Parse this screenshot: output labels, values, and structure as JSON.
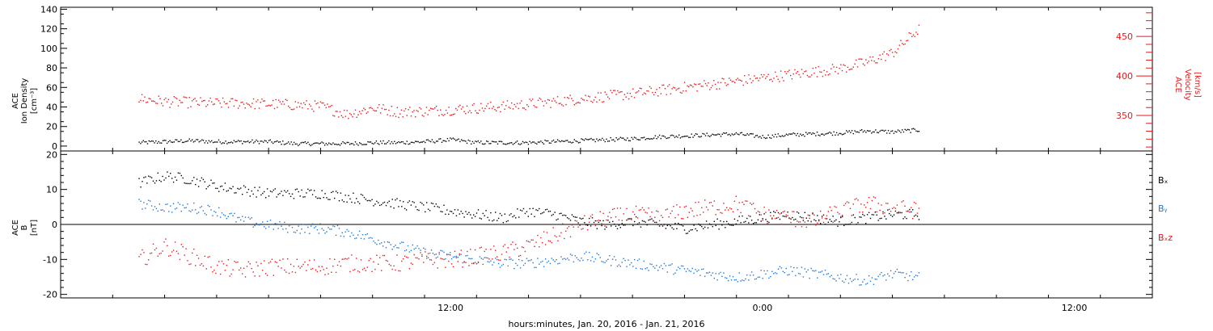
{
  "xlabel": "hours:minutes, Jan. 20, 2016 - Jan. 21, 2016",
  "x_ticks": [
    {
      "hours": 12,
      "label": "12:00"
    },
    {
      "hours": 24,
      "label": "0:00"
    },
    {
      "hours": 36,
      "label": "12:00"
    }
  ],
  "chart_data": [
    {
      "type": "scatter",
      "panel": "top",
      "x_range_hours": [
        0,
        30
      ],
      "xlim_hours": [
        -3,
        39
      ],
      "left_axis": {
        "label_lines": [
          "ACE",
          "Ion Density",
          "[cm⁻³]"
        ],
        "ylim": [
          -5,
          142
        ],
        "ticks": [
          0,
          20,
          40,
          60,
          80,
          100,
          120,
          140
        ]
      },
      "right_axis": {
        "label_lines": [
          "ACE",
          "Velocity",
          "[km/s]"
        ],
        "ylim": [
          305,
          487
        ],
        "ticks": [
          350,
          400,
          450
        ],
        "color": "#e8191b"
      },
      "series": [
        {
          "name": "",
          "axis": "left",
          "color": "#000000",
          "hours": [
            0,
            1,
            2,
            3,
            4,
            5,
            6,
            7,
            8,
            9,
            10,
            11,
            12,
            13,
            14,
            15,
            16,
            17,
            18,
            19,
            20,
            21,
            22,
            23,
            24,
            25,
            26,
            27,
            28,
            29,
            30
          ],
          "values": [
            4,
            5,
            6,
            5,
            5,
            5,
            3,
            3,
            3,
            4,
            4,
            5,
            7,
            4,
            4,
            4,
            5,
            6,
            7,
            8,
            10,
            11,
            12,
            13,
            10,
            12,
            13,
            14,
            16,
            15,
            17
          ]
        },
        {
          "name": "",
          "axis": "right",
          "color": "#e8191b",
          "hours": [
            0,
            1,
            2,
            3,
            4,
            5,
            6,
            7,
            8,
            9,
            10,
            11,
            12,
            13,
            14,
            15,
            16,
            17,
            18,
            19,
            20,
            21,
            22,
            23,
            24,
            25,
            26,
            27,
            28,
            29,
            30
          ],
          "values": [
            372,
            368,
            367,
            366,
            366,
            365,
            364,
            362,
            352,
            360,
            355,
            356,
            358,
            360,
            362,
            365,
            368,
            372,
            375,
            378,
            382,
            386,
            390,
            394,
            398,
            402,
            406,
            410,
            418,
            430,
            460
          ]
        }
      ]
    },
    {
      "type": "scatter",
      "panel": "bottom",
      "x_range_hours": [
        0,
        30
      ],
      "xlim_hours": [
        -3,
        39
      ],
      "axis": {
        "label_lines": [
          "ACE",
          "B",
          "[nT]"
        ],
        "ylim": [
          -21,
          21
        ],
        "ticks": [
          -20,
          -10,
          0,
          10,
          20
        ],
        "zero_line": true
      },
      "series": [
        {
          "name": "Bₓ",
          "color": "#000000",
          "hours": [
            0,
            1,
            2,
            3,
            4,
            5,
            6,
            7,
            8,
            9,
            10,
            11,
            12,
            13,
            14,
            15,
            16,
            17,
            18,
            19,
            20,
            21,
            22,
            23,
            24,
            25,
            26,
            27,
            28,
            29,
            30
          ],
          "values": [
            12,
            14,
            13,
            11,
            10,
            9,
            9,
            9,
            8,
            7,
            6,
            5,
            4,
            3,
            2,
            4,
            3,
            1,
            0,
            1,
            0,
            -1,
            0,
            1,
            2,
            3,
            2,
            1,
            2,
            3,
            3
          ]
        },
        {
          "name": "Bᵧ",
          "color": "#1f77d4",
          "hours": [
            0,
            1,
            2,
            3,
            4,
            5,
            6,
            7,
            8,
            9,
            10,
            11,
            12,
            13,
            14,
            15,
            16,
            17,
            18,
            19,
            20,
            21,
            22,
            23,
            24,
            25,
            26,
            27,
            28,
            29,
            30
          ],
          "values": [
            6,
            5,
            5,
            4,
            1,
            0,
            -1,
            -1,
            -2,
            -4,
            -6,
            -8,
            -9,
            -10,
            -11,
            -11,
            -10,
            -9,
            -10,
            -11,
            -12,
            -13,
            -14,
            -15,
            -14,
            -13,
            -14,
            -15,
            -16,
            -14,
            -15
          ]
        },
        {
          "name": "Bₓz",
          "color": "#e8191b",
          "hours": [
            0,
            1,
            2,
            3,
            4,
            5,
            6,
            7,
            8,
            9,
            10,
            11,
            12,
            13,
            14,
            15,
            16,
            17,
            18,
            19,
            20,
            21,
            22,
            23,
            24,
            25,
            26,
            27,
            28,
            29,
            30
          ],
          "values": [
            -10,
            -6,
            -9,
            -12,
            -13,
            -12,
            -12,
            -12,
            -11,
            -11,
            -11,
            -10,
            -10,
            -9,
            -8,
            -6,
            -3,
            0,
            2,
            3,
            2,
            4,
            5,
            6,
            3,
            2,
            1,
            4,
            6,
            5,
            4
          ]
        }
      ]
    }
  ]
}
